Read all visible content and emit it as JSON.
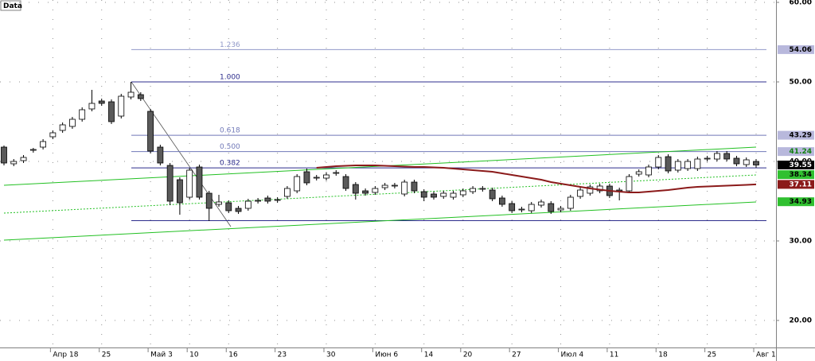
{
  "chart_data": {
    "type": "candlestick",
    "title": "Data",
    "categories": [
      null,
      null,
      null,
      null,
      null,
      "Апр 18",
      null,
      null,
      null,
      null,
      "25",
      null,
      null,
      null,
      null,
      "Май 3",
      null,
      null,
      null,
      "10",
      null,
      null,
      null,
      "16",
      null,
      null,
      null,
      null,
      "23",
      null,
      null,
      null,
      null,
      "30",
      null,
      null,
      null,
      null,
      "Июн 6",
      null,
      null,
      null,
      null,
      "14",
      null,
      null,
      null,
      "20",
      null,
      null,
      null,
      null,
      "27",
      null,
      null,
      null,
      null,
      "Июл 4",
      null,
      null,
      null,
      null,
      "11",
      null,
      null,
      null,
      null,
      "18",
      null,
      null,
      null,
      null,
      "25",
      null,
      null,
      null,
      null,
      "Авг 1"
    ],
    "open": [
      41.8,
      39.7,
      40.1,
      41.4,
      41.8,
      43.1,
      43.9,
      44.4,
      45.3,
      46.6,
      47.6,
      47.5,
      45.7,
      48.1,
      48.4,
      46.3,
      41.8,
      39.5,
      37.7,
      35.5,
      39.3,
      36.0,
      34.6,
      34.8,
      34.1,
      34.1,
      35.0,
      35.4,
      35.1,
      35.6,
      36.3,
      38.7,
      37.9,
      37.9,
      38.5,
      38.1,
      37.1,
      36.3,
      36.1,
      36.7,
      36.9,
      35.9,
      37.4,
      36.2,
      35.9,
      35.6,
      35.5,
      35.8,
      36.2,
      36.5,
      36.4,
      35.4,
      34.7,
      33.9,
      33.8,
      34.5,
      34.7,
      33.9,
      34.1,
      35.6,
      36.0,
      36.3,
      36.9,
      36.4,
      36.3,
      38.4,
      38.3,
      39.3,
      40.6,
      38.9,
      39.1,
      39.1,
      40.3,
      40.3,
      41.0,
      40.4,
      39.6,
      40.0
    ],
    "high": [
      42.0,
      40.3,
      40.8,
      41.7,
      42.8,
      43.9,
      44.9,
      45.6,
      46.8,
      49.0,
      47.9,
      47.8,
      48.5,
      50.0,
      48.7,
      46.6,
      42.1,
      39.8,
      38.0,
      39.2,
      39.6,
      36.3,
      35.8,
      35.1,
      34.4,
      35.3,
      35.4,
      35.7,
      35.5,
      36.9,
      38.4,
      39.1,
      38.3,
      38.6,
      38.9,
      38.4,
      37.4,
      36.6,
      36.9,
      37.3,
      37.3,
      37.7,
      37.7,
      36.5,
      36.2,
      36.3,
      36.3,
      36.6,
      36.9,
      36.9,
      36.7,
      35.7,
      35.0,
      34.3,
      34.9,
      35.2,
      35.0,
      34.4,
      35.8,
      36.7,
      37.1,
      37.2,
      37.2,
      36.7,
      38.4,
      39.0,
      39.6,
      40.8,
      40.9,
      40.3,
      40.3,
      40.6,
      40.7,
      41.3,
      41.3,
      40.7,
      40.5,
      40.3
    ],
    "low": [
      39.5,
      39.4,
      39.8,
      41.1,
      41.5,
      42.8,
      43.6,
      44.1,
      45.0,
      46.3,
      47.0,
      44.7,
      45.4,
      47.8,
      47.6,
      41.0,
      39.5,
      34.5,
      33.3,
      35.2,
      35.2,
      32.5,
      34.3,
      33.5,
      33.4,
      33.8,
      34.7,
      34.7,
      34.8,
      35.3,
      36.0,
      37.0,
      37.6,
      37.6,
      38.2,
      36.3,
      35.2,
      35.7,
      35.8,
      36.4,
      36.6,
      35.6,
      36.0,
      35.0,
      35.2,
      35.3,
      35.2,
      35.5,
      35.9,
      36.2,
      35.0,
      34.3,
      33.5,
      33.6,
      33.5,
      34.2,
      33.4,
      33.6,
      33.8,
      35.3,
      35.7,
      36.0,
      35.4,
      35.1,
      36.0,
      38.1,
      38.0,
      39.0,
      38.5,
      38.6,
      38.8,
      38.8,
      40.0,
      40.0,
      40.0,
      39.4,
      39.3,
      39.2
    ],
    "close": [
      39.8,
      40.0,
      40.5,
      41.5,
      42.5,
      43.6,
      44.6,
      45.3,
      46.5,
      47.3,
      47.3,
      45.0,
      48.2,
      48.7,
      47.9,
      41.3,
      39.8,
      35.0,
      34.8,
      38.9,
      35.5,
      34.1,
      34.9,
      33.8,
      33.7,
      35.0,
      35.1,
      35.0,
      35.2,
      36.6,
      38.1,
      37.3,
      38.0,
      38.3,
      38.6,
      36.6,
      36.0,
      36.0,
      36.6,
      37.0,
      37.0,
      37.4,
      36.3,
      35.5,
      35.5,
      36.0,
      36.0,
      36.3,
      36.6,
      36.6,
      35.3,
      34.6,
      33.8,
      34.0,
      34.6,
      34.9,
      33.7,
      34.1,
      35.5,
      36.4,
      36.8,
      36.9,
      35.7,
      36.2,
      38.1,
      38.7,
      39.3,
      40.5,
      38.8,
      40.0,
      40.0,
      40.3,
      40.4,
      41.0,
      40.3,
      39.7,
      40.2,
      39.55
    ],
    "moving_average": {
      "color": "#8b1a1a",
      "values": [
        null,
        null,
        null,
        null,
        null,
        null,
        null,
        null,
        null,
        null,
        null,
        null,
        null,
        null,
        null,
        null,
        null,
        null,
        null,
        null,
        null,
        null,
        null,
        null,
        null,
        null,
        null,
        null,
        null,
        null,
        null,
        null,
        39.2,
        39.3,
        39.4,
        39.45,
        39.5,
        39.5,
        39.5,
        39.45,
        39.4,
        39.35,
        39.3,
        39.3,
        39.25,
        39.2,
        39.1,
        39.0,
        38.9,
        38.8,
        38.7,
        38.5,
        38.3,
        38.1,
        37.9,
        37.7,
        37.4,
        37.2,
        37.0,
        36.8,
        36.6,
        36.45,
        36.3,
        36.2,
        36.1,
        36.1,
        36.2,
        36.3,
        36.4,
        36.55,
        36.7,
        36.8,
        36.85,
        36.9,
        36.95,
        37.0,
        37.05,
        37.11
      ]
    },
    "trendlines": [
      {
        "color": "#22c022",
        "dashed": false,
        "values": [
          37.0,
          41.8
        ]
      },
      {
        "color": "#22c022",
        "dashed": true,
        "values": [
          33.5,
          38.3
        ]
      },
      {
        "color": "#22c022",
        "dashed": false,
        "values": [
          30.1,
          34.9
        ]
      }
    ],
    "fib_levels": [
      {
        "label": "1.236",
        "value": 54.06,
        "color": "#9098c8"
      },
      {
        "label": "1.000",
        "value": 50.0,
        "color": "#2c2c8c"
      },
      {
        "label": "0.618",
        "value": 43.29,
        "color": "#7078b8"
      },
      {
        "label": "0.500",
        "value": 41.24,
        "color": "#7078b8"
      },
      {
        "label": "0.382",
        "value": 39.19,
        "color": "#2c2c8c"
      },
      {
        "value": 32.55,
        "color": "#2c2c8c"
      }
    ],
    "price_tags": [
      {
        "value": 54.06,
        "color": "#b8b8dc",
        "text_color": "#000000"
      },
      {
        "value": 43.29,
        "color": "#b8b8dc",
        "text_color": "#000000"
      },
      {
        "value": 41.24,
        "color": "#b8b8dc",
        "text_color": "#108010"
      },
      {
        "value": 39.55,
        "color": "#000000",
        "text_color": "#ffffff"
      },
      {
        "value": 38.34,
        "color": "#30c030",
        "text_color": "#000000"
      },
      {
        "value": 37.11,
        "color": "#8b1a1a",
        "text_color": "#ffffff"
      },
      {
        "value": 34.93,
        "color": "#30c030",
        "text_color": "#000000"
      }
    ],
    "ylim": [
      16.6,
      60.3
    ],
    "yticks": [
      {
        "value": 20,
        "label": "20.00"
      },
      {
        "value": 30,
        "label": "30.00"
      },
      {
        "value": 40,
        "label": "40.00"
      },
      {
        "value": 50,
        "label": "50.00"
      },
      {
        "value": 60,
        "label": "60.00"
      }
    ],
    "grid": true,
    "up_color": "#ffffff",
    "down_color": "#5a5a5a"
  }
}
